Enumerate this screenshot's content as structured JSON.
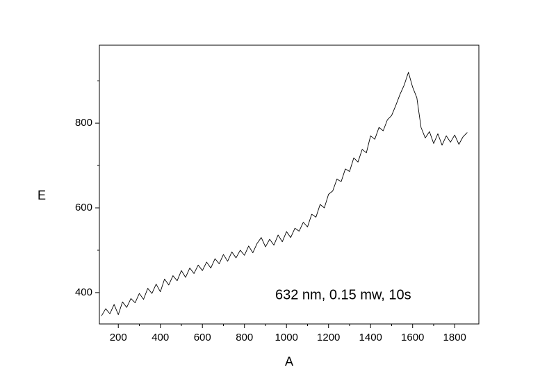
{
  "chart_data": {
    "type": "line",
    "xlabel": "A",
    "ylabel": "E",
    "annotation": "632 nm, 0.15 mw, 10s",
    "xlim": [
      110,
      1915
    ],
    "ylim": [
      326,
      984
    ],
    "xticks": [
      200,
      400,
      600,
      800,
      1000,
      1200,
      1400,
      1600,
      1800
    ],
    "yticks": [
      400,
      600,
      800
    ],
    "xminorticks": [
      300,
      500,
      700,
      900,
      1100,
      1300,
      1500,
      1700
    ],
    "yminorticks": [
      500,
      700,
      900
    ],
    "grid": false,
    "series": [
      {
        "color": "#000000",
        "x": [
          120,
          140,
          160,
          180,
          200,
          220,
          240,
          260,
          280,
          300,
          320,
          340,
          360,
          380,
          400,
          420,
          440,
          460,
          480,
          500,
          520,
          540,
          560,
          580,
          600,
          620,
          640,
          660,
          680,
          700,
          720,
          740,
          760,
          780,
          800,
          820,
          840,
          860,
          880,
          900,
          920,
          940,
          960,
          980,
          1000,
          1020,
          1040,
          1060,
          1080,
          1100,
          1120,
          1140,
          1160,
          1180,
          1200,
          1220,
          1240,
          1260,
          1280,
          1300,
          1320,
          1340,
          1360,
          1380,
          1400,
          1420,
          1440,
          1460,
          1480,
          1500,
          1520,
          1540,
          1560,
          1580,
          1600,
          1620,
          1640,
          1660,
          1680,
          1700,
          1720,
          1740,
          1760,
          1780,
          1800,
          1820,
          1840,
          1860
        ],
        "values": [
          345,
          362,
          350,
          372,
          348,
          378,
          365,
          386,
          376,
          398,
          384,
          410,
          398,
          420,
          402,
          432,
          418,
          440,
          428,
          452,
          436,
          458,
          445,
          465,
          452,
          472,
          458,
          480,
          468,
          490,
          474,
          496,
          482,
          500,
          488,
          510,
          494,
          516,
          530,
          508,
          526,
          512,
          536,
          520,
          544,
          530,
          552,
          545,
          566,
          555,
          585,
          578,
          608,
          600,
          632,
          640,
          668,
          662,
          692,
          686,
          718,
          708,
          738,
          730,
          770,
          762,
          790,
          782,
          808,
          818,
          842,
          868,
          890,
          920,
          885,
          860,
          790,
          765,
          780,
          752,
          775,
          748,
          770,
          755,
          772,
          750,
          768,
          778
        ]
      }
    ]
  }
}
